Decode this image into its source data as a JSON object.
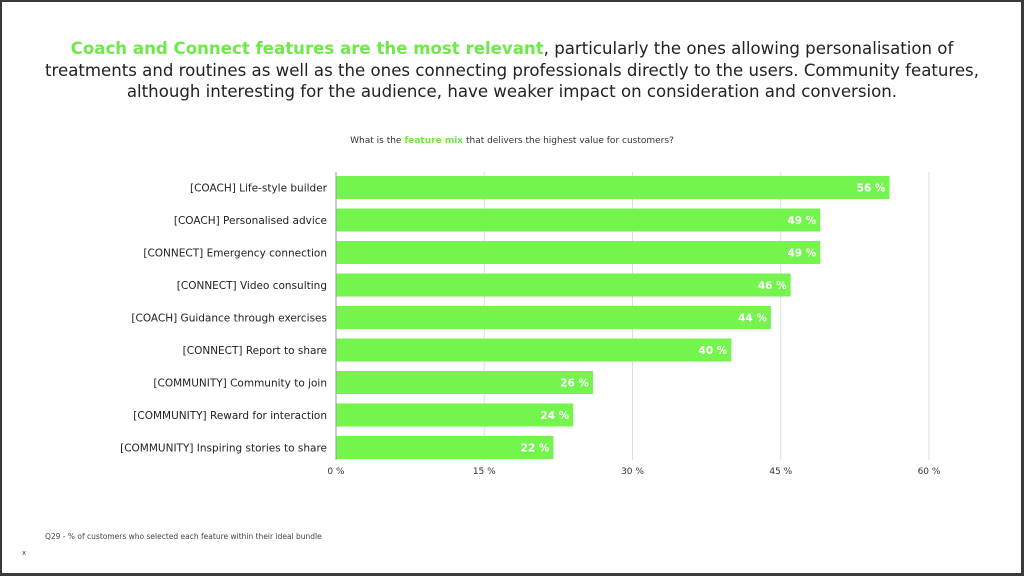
{
  "headline": {
    "highlight": "Coach and Connect features are the most relevant",
    "rest_line1": ", particularly the ones allowing personalisation of",
    "line2": "treatments and routines as well as the ones connecting professionals directly to the users. Community features,",
    "line3": "although interesting for the audience, have weaker impact on consideration and conversion."
  },
  "question": {
    "before": "What is the ",
    "highlight": "feature mix",
    "after": " that delivers the highest value for customers?"
  },
  "footnote": "Q29 - % of customers who selected each feature within their ideal bundle",
  "corner_mark": "x",
  "colors": {
    "accent": "#6ee84a",
    "bar": "#74f54e",
    "text": "#222222",
    "grid": "#dddddd"
  },
  "chart_data": {
    "type": "bar",
    "orientation": "horizontal",
    "title": "What is the feature mix that delivers the highest value for customers?",
    "xlabel": "",
    "ylabel": "",
    "categories": [
      "[COACH] Life-style builder",
      "[COACH] Personalised advice",
      "[CONNECT] Emergency connection",
      "[CONNECT] Video consulting",
      "[COACH] Guidance through exercises",
      "[CONNECT] Report to share",
      "[COMMUNITY] Community to join",
      "[COMMUNITY] Reward for interaction",
      "[COMMUNITY] Inspiring stories to share"
    ],
    "values": [
      56,
      49,
      49,
      46,
      44,
      40,
      26,
      24,
      22
    ],
    "value_labels": [
      "56 %",
      "49 %",
      "49 %",
      "46 %",
      "44 %",
      "40 %",
      "26 %",
      "24 %",
      "22 %"
    ],
    "xlim": [
      0,
      60
    ],
    "xticks": [
      0,
      15,
      30,
      45,
      60
    ],
    "xtick_labels": [
      "0 %",
      "15 %",
      "30 %",
      "45 %",
      "60 %"
    ],
    "grid": true,
    "legend": "none"
  }
}
